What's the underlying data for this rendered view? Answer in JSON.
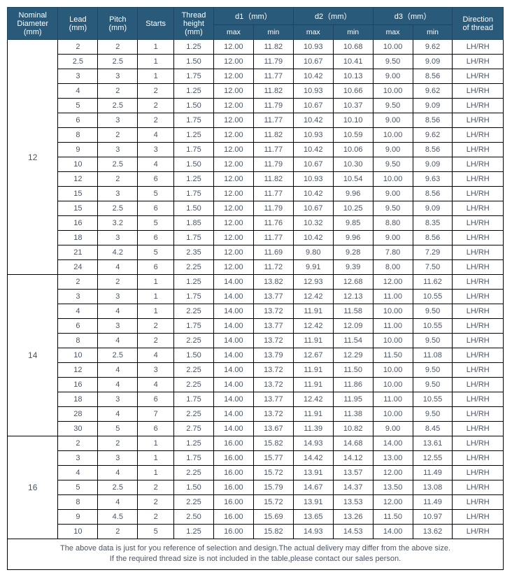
{
  "headers": {
    "nominal": "Nominal\nDiameter\n(mm)",
    "lead": "Lead\n(mm)",
    "pitch": "Pitch\n(mm)",
    "starts": "Starts",
    "threadHeight": "Thread\nheight\n(mm)",
    "d1": "d1（mm）",
    "d2": "d2（mm）",
    "d3": "d3（mm）",
    "direction": "Direction\nof thread",
    "max": "max",
    "min": "min"
  },
  "groups": [
    {
      "nominal": "12",
      "rows": [
        {
          "lead": "2",
          "pitch": "2",
          "starts": "1",
          "th": "1.25",
          "d1max": "12.00",
          "d1min": "11.82",
          "d2max": "10.93",
          "d2min": "10.68",
          "d3max": "10.00",
          "d3min": "9.62",
          "dir": "LH/RH"
        },
        {
          "lead": "2.5",
          "pitch": "2.5",
          "starts": "1",
          "th": "1.50",
          "d1max": "12.00",
          "d1min": "11.79",
          "d2max": "10.67",
          "d2min": "10.41",
          "d3max": "9.50",
          "d3min": "9.09",
          "dir": "LH/RH"
        },
        {
          "lead": "3",
          "pitch": "3",
          "starts": "1",
          "th": "1.75",
          "d1max": "12.00",
          "d1min": "11.77",
          "d2max": "10.42",
          "d2min": "10.13",
          "d3max": "9.00",
          "d3min": "8.56",
          "dir": "LH/RH"
        },
        {
          "lead": "4",
          "pitch": "2",
          "starts": "2",
          "th": "1.25",
          "d1max": "12.00",
          "d1min": "11.82",
          "d2max": "10.93",
          "d2min": "10.66",
          "d3max": "10.00",
          "d3min": "9.62",
          "dir": "LH/RH"
        },
        {
          "lead": "5",
          "pitch": "2.5",
          "starts": "2",
          "th": "1.50",
          "d1max": "12.00",
          "d1min": "11.79",
          "d2max": "10.67",
          "d2min": "10.37",
          "d3max": "9.50",
          "d3min": "9.09",
          "dir": "LH/RH"
        },
        {
          "lead": "6",
          "pitch": "3",
          "starts": "2",
          "th": "1.75",
          "d1max": "12.00",
          "d1min": "11.77",
          "d2max": "10.42",
          "d2min": "10.10",
          "d3max": "9.00",
          "d3min": "8.56",
          "dir": "LH/RH"
        },
        {
          "lead": "8",
          "pitch": "2",
          "starts": "4",
          "th": "1.25",
          "d1max": "12.00",
          "d1min": "11.82",
          "d2max": "10.93",
          "d2min": "10.59",
          "d3max": "10.00",
          "d3min": "9.62",
          "dir": "LH/RH"
        },
        {
          "lead": "9",
          "pitch": "3",
          "starts": "3",
          "th": "1.75",
          "d1max": "12.00",
          "d1min": "11.77",
          "d2max": "10.42",
          "d2min": "10.06",
          "d3max": "9.00",
          "d3min": "8.56",
          "dir": "LH/RH"
        },
        {
          "lead": "10",
          "pitch": "2.5",
          "starts": "4",
          "th": "1.50",
          "d1max": "12.00",
          "d1min": "11.79",
          "d2max": "10.67",
          "d2min": "10.30",
          "d3max": "9.50",
          "d3min": "9.09",
          "dir": "LH/RH"
        },
        {
          "lead": "12",
          "pitch": "2",
          "starts": "6",
          "th": "1.25",
          "d1max": "12.00",
          "d1min": "11.82",
          "d2max": "10.93",
          "d2min": "10.54",
          "d3max": "10.00",
          "d3min": "9.63",
          "dir": "LH/RH"
        },
        {
          "lead": "15",
          "pitch": "3",
          "starts": "5",
          "th": "1.75",
          "d1max": "12.00",
          "d1min": "11.77",
          "d2max": "10.42",
          "d2min": "9.96",
          "d3max": "9.00",
          "d3min": "8.56",
          "dir": "LH/RH"
        },
        {
          "lead": "15",
          "pitch": "2.5",
          "starts": "6",
          "th": "1.50",
          "d1max": "12.00",
          "d1min": "11.79",
          "d2max": "10.67",
          "d2min": "10.25",
          "d3max": "9.50",
          "d3min": "9.09",
          "dir": "LH/RH"
        },
        {
          "lead": "16",
          "pitch": "3.2",
          "starts": "5",
          "th": "1.85",
          "d1max": "12.00",
          "d1min": "11.76",
          "d2max": "10.32",
          "d2min": "9.85",
          "d3max": "8.80",
          "d3min": "8.35",
          "dir": "LH/RH"
        },
        {
          "lead": "18",
          "pitch": "3",
          "starts": "6",
          "th": "1.75",
          "d1max": "12.00",
          "d1min": "11.77",
          "d2max": "10.42",
          "d2min": "9.96",
          "d3max": "9.00",
          "d3min": "8.56",
          "dir": "LH/RH"
        },
        {
          "lead": "21",
          "pitch": "4.2",
          "starts": "5",
          "th": "2.35",
          "d1max": "12.00",
          "d1min": "11.69",
          "d2max": "9.80",
          "d2min": "9.28",
          "d3max": "7.80",
          "d3min": "7.29",
          "dir": "LH/RH"
        },
        {
          "lead": "24",
          "pitch": "4",
          "starts": "6",
          "th": "2.25",
          "d1max": "12.00",
          "d1min": "11.72",
          "d2max": "9.91",
          "d2min": "9.39",
          "d3max": "8.00",
          "d3min": "7.50",
          "dir": "LH/RH"
        }
      ]
    },
    {
      "nominal": "14",
      "rows": [
        {
          "lead": "2",
          "pitch": "2",
          "starts": "1",
          "th": "1.25",
          "d1max": "14.00",
          "d1min": "13.82",
          "d2max": "12.93",
          "d2min": "12.68",
          "d3max": "12.00",
          "d3min": "11.62",
          "dir": "LH/RH"
        },
        {
          "lead": "3",
          "pitch": "3",
          "starts": "1",
          "th": "1.75",
          "d1max": "14.00",
          "d1min": "13.77",
          "d2max": "12.42",
          "d2min": "12.13",
          "d3max": "11.00",
          "d3min": "10.55",
          "dir": "LH/RH"
        },
        {
          "lead": "4",
          "pitch": "4",
          "starts": "1",
          "th": "2.25",
          "d1max": "14.00",
          "d1min": "13.72",
          "d2max": "11.91",
          "d2min": "11.58",
          "d3max": "10.00",
          "d3min": "9.50",
          "dir": "LH/RH"
        },
        {
          "lead": "6",
          "pitch": "3",
          "starts": "2",
          "th": "1.75",
          "d1max": "14.00",
          "d1min": "13.77",
          "d2max": "12.42",
          "d2min": "12.09",
          "d3max": "11.00",
          "d3min": "10.55",
          "dir": "LH/RH"
        },
        {
          "lead": "8",
          "pitch": "4",
          "starts": "2",
          "th": "2.25",
          "d1max": "14.00",
          "d1min": "13.72",
          "d2max": "11.91",
          "d2min": "11.54",
          "d3max": "10.00",
          "d3min": "9.50",
          "dir": "LH/RH"
        },
        {
          "lead": "10",
          "pitch": "2.5",
          "starts": "4",
          "th": "1.50",
          "d1max": "14.00",
          "d1min": "13.79",
          "d2max": "12.67",
          "d2min": "12.29",
          "d3max": "11.50",
          "d3min": "11.08",
          "dir": "LH/RH"
        },
        {
          "lead": "12",
          "pitch": "4",
          "starts": "3",
          "th": "2.25",
          "d1max": "14.00",
          "d1min": "13.72",
          "d2max": "11.91",
          "d2min": "11.50",
          "d3max": "10.00",
          "d3min": "9.50",
          "dir": "LH/RH"
        },
        {
          "lead": "16",
          "pitch": "4",
          "starts": "4",
          "th": "2.25",
          "d1max": "14.00",
          "d1min": "13.72",
          "d2max": "11.91",
          "d2min": "11.86",
          "d3max": "10.00",
          "d3min": "9.50",
          "dir": "LH/RH"
        },
        {
          "lead": "18",
          "pitch": "3",
          "starts": "6",
          "th": "1.75",
          "d1max": "14.00",
          "d1min": "13.77",
          "d2max": "12.42",
          "d2min": "11.95",
          "d3max": "11.00",
          "d3min": "10.55",
          "dir": "LH/RH"
        },
        {
          "lead": "28",
          "pitch": "4",
          "starts": "7",
          "th": "2.25",
          "d1max": "14.00",
          "d1min": "13.72",
          "d2max": "11.91",
          "d2min": "11.38",
          "d3max": "10.00",
          "d3min": "9.50",
          "dir": "LH/RH"
        },
        {
          "lead": "30",
          "pitch": "5",
          "starts": "6",
          "th": "2.75",
          "d1max": "14.00",
          "d1min": "13.67",
          "d2max": "11.39",
          "d2min": "10.82",
          "d3max": "9.00",
          "d3min": "8.45",
          "dir": "LH/RH"
        }
      ]
    },
    {
      "nominal": "16",
      "rows": [
        {
          "lead": "2",
          "pitch": "2",
          "starts": "1",
          "th": "1.25",
          "d1max": "16.00",
          "d1min": "15.82",
          "d2max": "14.93",
          "d2min": "14.68",
          "d3max": "14.00",
          "d3min": "13.61",
          "dir": "LH/RH"
        },
        {
          "lead": "3",
          "pitch": "3",
          "starts": "1",
          "th": "1.75",
          "d1max": "16.00",
          "d1min": "15.77",
          "d2max": "14.42",
          "d2min": "14.12",
          "d3max": "13.00",
          "d3min": "12.55",
          "dir": "LH/RH"
        },
        {
          "lead": "4",
          "pitch": "4",
          "starts": "1",
          "th": "2.25",
          "d1max": "16.00",
          "d1min": "15.72",
          "d2max": "13.91",
          "d2min": "13.57",
          "d3max": "12.00",
          "d3min": "11.49",
          "dir": "LH/RH"
        },
        {
          "lead": "5",
          "pitch": "2.5",
          "starts": "2",
          "th": "1.50",
          "d1max": "16.00",
          "d1min": "15.79",
          "d2max": "14.67",
          "d2min": "14.37",
          "d3max": "13.50",
          "d3min": "13.08",
          "dir": "LH/RH"
        },
        {
          "lead": "8",
          "pitch": "4",
          "starts": "2",
          "th": "2.25",
          "d1max": "16.00",
          "d1min": "15.72",
          "d2max": "13.91",
          "d2min": "13.53",
          "d3max": "12.00",
          "d3min": "11.49",
          "dir": "LH/RH"
        },
        {
          "lead": "9",
          "pitch": "4.5",
          "starts": "2",
          "th": "2.50",
          "d1max": "16.00",
          "d1min": "15.69",
          "d2max": "13.65",
          "d2min": "13.26",
          "d3max": "11.50",
          "d3min": "10.97",
          "dir": "LH/RH"
        },
        {
          "lead": "10",
          "pitch": "2",
          "starts": "5",
          "th": "1.25",
          "d1max": "16.00",
          "d1min": "15.82",
          "d2max": "14.93",
          "d2min": "14.53",
          "d3max": "14.00",
          "d3min": "13.62",
          "dir": "LH/RH"
        }
      ]
    }
  ],
  "footer": "The above data is just for you reference of selection and design.The actual delivery may differ from the above size.\nIf the required thread size is not included in the table,please contact our sales person.",
  "colWidths": {
    "nominal": 70,
    "lead": 55,
    "pitch": 55,
    "starts": 50,
    "th": 55,
    "d": 55,
    "dir": 70
  },
  "colors": {
    "headerBg": "#2a5a7a",
    "headerText": "#ffffff",
    "cellText": "#4a5568",
    "border": "#000000"
  }
}
